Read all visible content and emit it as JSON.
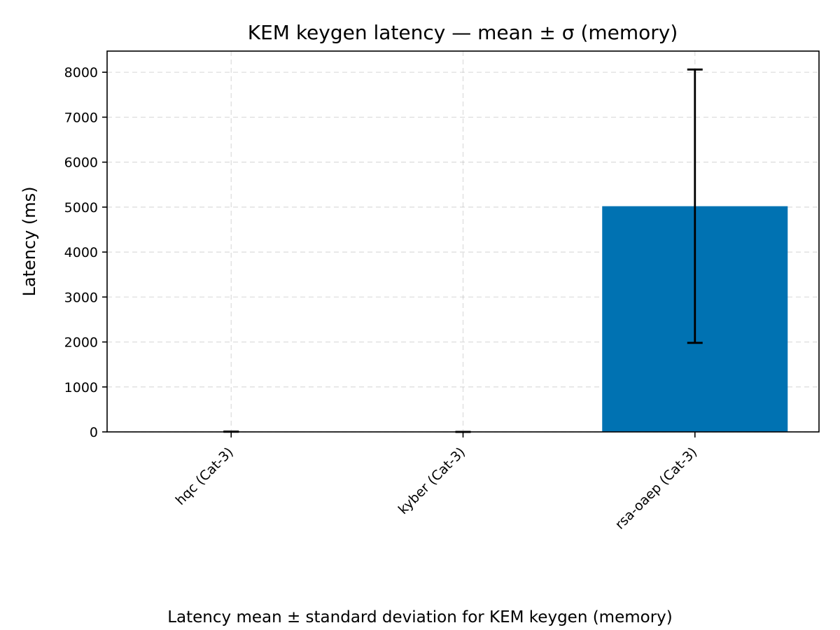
{
  "chart_data": {
    "type": "bar",
    "title": "KEM keygen latency — mean ± σ (memory)",
    "xlabel": "",
    "ylabel": "Latency (ms)",
    "caption": "Latency mean ± standard deviation for KEM keygen (memory)",
    "categories": [
      "hqc (Cat-3)",
      "kyber (Cat-3)",
      "rsa-oaep (Cat-3)"
    ],
    "values": [
      5,
      0.1,
      5020
    ],
    "errors": [
      3,
      0.05,
      3040
    ],
    "ylim": [
      0,
      8470
    ],
    "yticks": [
      0,
      1000,
      2000,
      3000,
      4000,
      5000,
      6000,
      7000,
      8000
    ],
    "grid": true,
    "bar_color": "#0072b2",
    "error_color": "#000000"
  }
}
